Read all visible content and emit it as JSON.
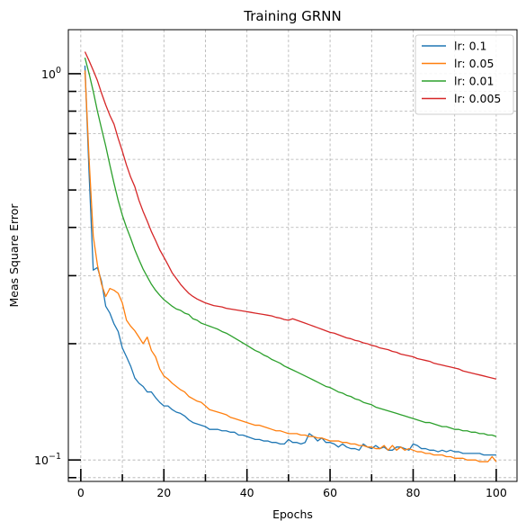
{
  "chart_data": {
    "type": "line",
    "title": "Training GRNN",
    "xlabel": "Epochs",
    "ylabel": "Meas Square Error",
    "yscale": "log",
    "xlim": [
      -3,
      105
    ],
    "ylim": [
      0.088,
      1.3
    ],
    "xticks": [
      0,
      20,
      40,
      60,
      80,
      100
    ],
    "xtick_labels": [
      "0",
      "20",
      "40",
      "60",
      "80",
      "100"
    ],
    "yticks": [
      0.1,
      1.0
    ],
    "ytick_labels": [
      "10^{-1}",
      "10^{0}"
    ],
    "grid": true,
    "legend_position": "top-right",
    "series": [
      {
        "name": "lr: 0.1",
        "color": "#1f77b4",
        "x": [
          1,
          2,
          3,
          4,
          5,
          6,
          7,
          8,
          9,
          10,
          11,
          12,
          13,
          14,
          15,
          16,
          17,
          18,
          19,
          20,
          21,
          22,
          23,
          24,
          25,
          26,
          27,
          28,
          29,
          30,
          31,
          32,
          33,
          34,
          35,
          36,
          37,
          38,
          39,
          40,
          41,
          42,
          43,
          44,
          45,
          46,
          47,
          48,
          49,
          50,
          51,
          52,
          53,
          54,
          55,
          56,
          57,
          58,
          59,
          60,
          61,
          62,
          63,
          64,
          65,
          66,
          67,
          68,
          69,
          70,
          71,
          72,
          73,
          74,
          75,
          76,
          77,
          78,
          79,
          80,
          81,
          82,
          83,
          84,
          85,
          86,
          87,
          88,
          89,
          90,
          91,
          92,
          93,
          94,
          95,
          96,
          97,
          98,
          99,
          100
        ],
        "values": [
          1.05,
          0.55,
          0.31,
          0.315,
          0.29,
          0.25,
          0.24,
          0.225,
          0.215,
          0.195,
          0.185,
          0.175,
          0.163,
          0.158,
          0.155,
          0.15,
          0.15,
          0.145,
          0.141,
          0.138,
          0.138,
          0.135,
          0.133,
          0.132,
          0.13,
          0.127,
          0.125,
          0.124,
          0.123,
          0.122,
          0.12,
          0.12,
          0.12,
          0.119,
          0.119,
          0.118,
          0.118,
          0.116,
          0.116,
          0.115,
          0.114,
          0.113,
          0.113,
          0.112,
          0.112,
          0.111,
          0.111,
          0.11,
          0.11,
          0.113,
          0.111,
          0.111,
          0.11,
          0.111,
          0.117,
          0.115,
          0.112,
          0.114,
          0.111,
          0.111,
          0.11,
          0.108,
          0.11,
          0.108,
          0.107,
          0.107,
          0.106,
          0.11,
          0.108,
          0.107,
          0.109,
          0.107,
          0.108,
          0.106,
          0.106,
          0.108,
          0.108,
          0.107,
          0.106,
          0.11,
          0.109,
          0.107,
          0.107,
          0.106,
          0.106,
          0.105,
          0.106,
          0.105,
          0.106,
          0.105,
          0.105,
          0.104,
          0.104,
          0.104,
          0.104,
          0.104,
          0.103,
          0.103,
          0.103,
          0.103
        ]
      },
      {
        "name": "lr: 0.05",
        "color": "#ff7f0e",
        "x": [
          1,
          2,
          3,
          4,
          5,
          6,
          7,
          8,
          9,
          10,
          11,
          12,
          13,
          14,
          15,
          16,
          17,
          18,
          19,
          20,
          21,
          22,
          23,
          24,
          25,
          26,
          27,
          28,
          29,
          30,
          31,
          32,
          33,
          34,
          35,
          36,
          37,
          38,
          39,
          40,
          41,
          42,
          43,
          44,
          45,
          46,
          47,
          48,
          49,
          50,
          51,
          52,
          53,
          54,
          55,
          56,
          57,
          58,
          59,
          60,
          61,
          62,
          63,
          64,
          65,
          66,
          67,
          68,
          69,
          70,
          71,
          72,
          73,
          74,
          75,
          76,
          77,
          78,
          79,
          80,
          81,
          82,
          83,
          84,
          85,
          86,
          87,
          88,
          89,
          90,
          91,
          92,
          93,
          94,
          95,
          96,
          97,
          98,
          99,
          100
        ],
        "values": [
          1.02,
          0.6,
          0.38,
          0.32,
          0.285,
          0.265,
          0.278,
          0.275,
          0.27,
          0.255,
          0.23,
          0.222,
          0.216,
          0.208,
          0.2,
          0.208,
          0.192,
          0.185,
          0.172,
          0.165,
          0.162,
          0.158,
          0.155,
          0.152,
          0.15,
          0.146,
          0.144,
          0.142,
          0.141,
          0.138,
          0.135,
          0.134,
          0.133,
          0.132,
          0.131,
          0.129,
          0.128,
          0.127,
          0.126,
          0.125,
          0.124,
          0.123,
          0.123,
          0.122,
          0.121,
          0.12,
          0.119,
          0.119,
          0.118,
          0.117,
          0.117,
          0.117,
          0.116,
          0.116,
          0.115,
          0.115,
          0.114,
          0.114,
          0.113,
          0.112,
          0.112,
          0.112,
          0.111,
          0.111,
          0.11,
          0.11,
          0.109,
          0.109,
          0.108,
          0.108,
          0.107,
          0.107,
          0.109,
          0.106,
          0.109,
          0.106,
          0.108,
          0.106,
          0.107,
          0.106,
          0.105,
          0.105,
          0.104,
          0.104,
          0.103,
          0.103,
          0.103,
          0.102,
          0.102,
          0.101,
          0.101,
          0.101,
          0.1,
          0.1,
          0.1,
          0.099,
          0.099,
          0.099,
          0.102,
          0.099
        ]
      },
      {
        "name": "lr: 0.01",
        "color": "#2ca02c",
        "x": [
          1,
          2,
          3,
          4,
          5,
          6,
          7,
          8,
          9,
          10,
          11,
          12,
          13,
          14,
          15,
          16,
          17,
          18,
          19,
          20,
          21,
          22,
          23,
          24,
          25,
          26,
          27,
          28,
          29,
          30,
          31,
          32,
          33,
          34,
          35,
          36,
          37,
          38,
          39,
          40,
          41,
          42,
          43,
          44,
          45,
          46,
          47,
          48,
          49,
          50,
          51,
          52,
          53,
          54,
          55,
          56,
          57,
          58,
          59,
          60,
          61,
          62,
          63,
          64,
          65,
          66,
          67,
          68,
          69,
          70,
          71,
          72,
          73,
          74,
          75,
          76,
          77,
          78,
          79,
          80,
          81,
          82,
          83,
          84,
          85,
          86,
          87,
          88,
          89,
          90,
          91,
          92,
          93,
          94,
          95,
          96,
          97,
          98,
          99,
          100
        ],
        "values": [
          1.1,
          1.0,
          0.9,
          0.8,
          0.72,
          0.65,
          0.58,
          0.52,
          0.47,
          0.43,
          0.4,
          0.375,
          0.35,
          0.33,
          0.312,
          0.298,
          0.285,
          0.275,
          0.267,
          0.26,
          0.255,
          0.25,
          0.246,
          0.244,
          0.24,
          0.238,
          0.232,
          0.23,
          0.226,
          0.224,
          0.222,
          0.22,
          0.218,
          0.215,
          0.213,
          0.21,
          0.207,
          0.204,
          0.201,
          0.198,
          0.195,
          0.192,
          0.19,
          0.187,
          0.185,
          0.182,
          0.18,
          0.178,
          0.175,
          0.173,
          0.171,
          0.169,
          0.167,
          0.165,
          0.163,
          0.161,
          0.159,
          0.157,
          0.155,
          0.154,
          0.152,
          0.15,
          0.149,
          0.147,
          0.146,
          0.144,
          0.143,
          0.141,
          0.14,
          0.139,
          0.137,
          0.136,
          0.135,
          0.134,
          0.133,
          0.132,
          0.131,
          0.13,
          0.129,
          0.128,
          0.127,
          0.126,
          0.125,
          0.125,
          0.124,
          0.123,
          0.122,
          0.122,
          0.121,
          0.12,
          0.12,
          0.119,
          0.119,
          0.118,
          0.118,
          0.117,
          0.117,
          0.116,
          0.116,
          0.115
        ]
      },
      {
        "name": "lr: 0.005",
        "color": "#d62728",
        "x": [
          1,
          2,
          3,
          4,
          5,
          6,
          7,
          8,
          9,
          10,
          11,
          12,
          13,
          14,
          15,
          16,
          17,
          18,
          19,
          20,
          21,
          22,
          23,
          24,
          25,
          26,
          27,
          28,
          29,
          30,
          31,
          32,
          33,
          34,
          35,
          36,
          37,
          38,
          39,
          40,
          41,
          42,
          43,
          44,
          45,
          46,
          47,
          48,
          49,
          50,
          51,
          52,
          53,
          54,
          55,
          56,
          57,
          58,
          59,
          60,
          61,
          62,
          63,
          64,
          65,
          66,
          67,
          68,
          69,
          70,
          71,
          72,
          73,
          74,
          75,
          76,
          77,
          78,
          79,
          80,
          81,
          82,
          83,
          84,
          85,
          86,
          87,
          88,
          89,
          90,
          91,
          92,
          93,
          94,
          95,
          96,
          97,
          98,
          99,
          100
        ],
        "values": [
          1.14,
          1.08,
          1.02,
          0.96,
          0.89,
          0.83,
          0.78,
          0.74,
          0.68,
          0.63,
          0.58,
          0.54,
          0.51,
          0.47,
          0.44,
          0.415,
          0.39,
          0.37,
          0.35,
          0.335,
          0.32,
          0.305,
          0.295,
          0.285,
          0.277,
          0.27,
          0.265,
          0.261,
          0.258,
          0.255,
          0.253,
          0.251,
          0.25,
          0.249,
          0.247,
          0.246,
          0.245,
          0.244,
          0.243,
          0.242,
          0.241,
          0.24,
          0.239,
          0.238,
          0.237,
          0.236,
          0.234,
          0.233,
          0.231,
          0.23,
          0.232,
          0.23,
          0.228,
          0.226,
          0.224,
          0.222,
          0.22,
          0.218,
          0.216,
          0.214,
          0.213,
          0.211,
          0.209,
          0.207,
          0.206,
          0.204,
          0.203,
          0.201,
          0.2,
          0.198,
          0.197,
          0.195,
          0.194,
          0.193,
          0.191,
          0.19,
          0.188,
          0.187,
          0.186,
          0.185,
          0.183,
          0.182,
          0.181,
          0.18,
          0.178,
          0.177,
          0.176,
          0.175,
          0.174,
          0.173,
          0.172,
          0.17,
          0.169,
          0.168,
          0.167,
          0.166,
          0.165,
          0.164,
          0.163,
          0.162
        ]
      }
    ]
  }
}
